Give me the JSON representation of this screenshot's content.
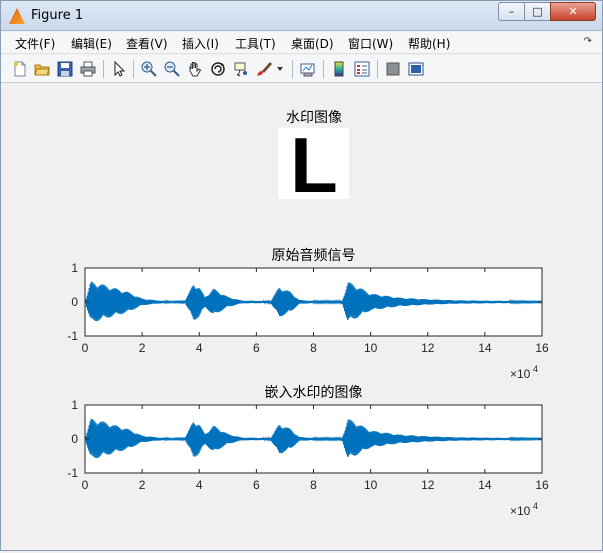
{
  "window": {
    "title": "Figure 1",
    "controls": {
      "minimize": "–",
      "maximize": "□",
      "close": "✕"
    }
  },
  "menu": {
    "items": [
      {
        "label": "文件(F)"
      },
      {
        "label": "编辑(E)"
      },
      {
        "label": "查看(V)"
      },
      {
        "label": "插入(I)"
      },
      {
        "label": "工具(T)"
      },
      {
        "label": "桌面(D)"
      },
      {
        "label": "窗口(W)"
      },
      {
        "label": "帮助(H)"
      }
    ],
    "overflow_icon": "curved-arrow-icon"
  },
  "toolbar": {
    "icons": [
      "new-figure-icon",
      "open-file-icon",
      "save-icon",
      "print-icon",
      "pointer-icon",
      "zoom-in-icon",
      "zoom-out-icon",
      "pan-hand-icon",
      "rotate-3d-icon",
      "data-cursor-icon",
      "brush-icon",
      "dropdown-arrow-icon",
      "link-plot-icon",
      "colorbar-icon",
      "legend-icon",
      "hide-plot-tools-icon",
      "show-plot-tools-icon"
    ]
  },
  "watermark": {
    "title": "水印图像",
    "letter": "L"
  },
  "chart_data": [
    {
      "type": "line",
      "title": "原始音频信号",
      "xlim": [
        0,
        160000
      ],
      "ylim": [
        -1,
        1
      ],
      "xticks": [
        "0",
        "2",
        "4",
        "6",
        "8",
        "10",
        "12",
        "14",
        "16"
      ],
      "yticks": [
        "1",
        "0",
        "-1"
      ],
      "x_exponent": "×10",
      "x_exponent_power": "4",
      "color": "#0072bd",
      "series": [
        {
          "x": [
            0,
            2000,
            5000,
            10000,
            15000,
            20000,
            25000,
            30000,
            35000,
            38000,
            40000,
            42000,
            45000,
            50000,
            55000,
            65000,
            68000,
            72000,
            75000,
            80000,
            90000,
            92000,
            95000,
            100000,
            110000,
            120000,
            130000,
            140000,
            150000,
            160000
          ],
          "y": [
            0.0,
            0.6,
            0.55,
            0.42,
            0.3,
            0.1,
            0.05,
            0.02,
            0.03,
            0.55,
            0.45,
            0.15,
            0.4,
            0.15,
            0.04,
            0.03,
            0.45,
            0.3,
            0.06,
            0.03,
            0.03,
            0.6,
            0.48,
            0.25,
            0.13,
            0.08,
            0.05,
            0.04,
            0.03,
            0.02
          ]
        }
      ]
    },
    {
      "type": "line",
      "title": "嵌入水印的图像",
      "xlim": [
        0,
        160000
      ],
      "ylim": [
        -1,
        1
      ],
      "xticks": [
        "0",
        "2",
        "4",
        "6",
        "8",
        "10",
        "12",
        "14",
        "16"
      ],
      "yticks": [
        "1",
        "0",
        "-1"
      ],
      "x_exponent": "×10",
      "x_exponent_power": "4",
      "color": "#0072bd",
      "series": [
        {
          "x": [
            0,
            2000,
            5000,
            10000,
            15000,
            20000,
            25000,
            30000,
            35000,
            38000,
            40000,
            42000,
            45000,
            50000,
            55000,
            65000,
            68000,
            72000,
            75000,
            80000,
            90000,
            92000,
            95000,
            100000,
            110000,
            120000,
            130000,
            140000,
            150000,
            160000
          ],
          "y": [
            0.0,
            0.6,
            0.55,
            0.42,
            0.3,
            0.1,
            0.05,
            0.02,
            0.03,
            0.55,
            0.45,
            0.15,
            0.4,
            0.15,
            0.04,
            0.03,
            0.45,
            0.3,
            0.06,
            0.03,
            0.03,
            0.6,
            0.48,
            0.25,
            0.13,
            0.08,
            0.05,
            0.04,
            0.03,
            0.02
          ]
        }
      ]
    }
  ]
}
